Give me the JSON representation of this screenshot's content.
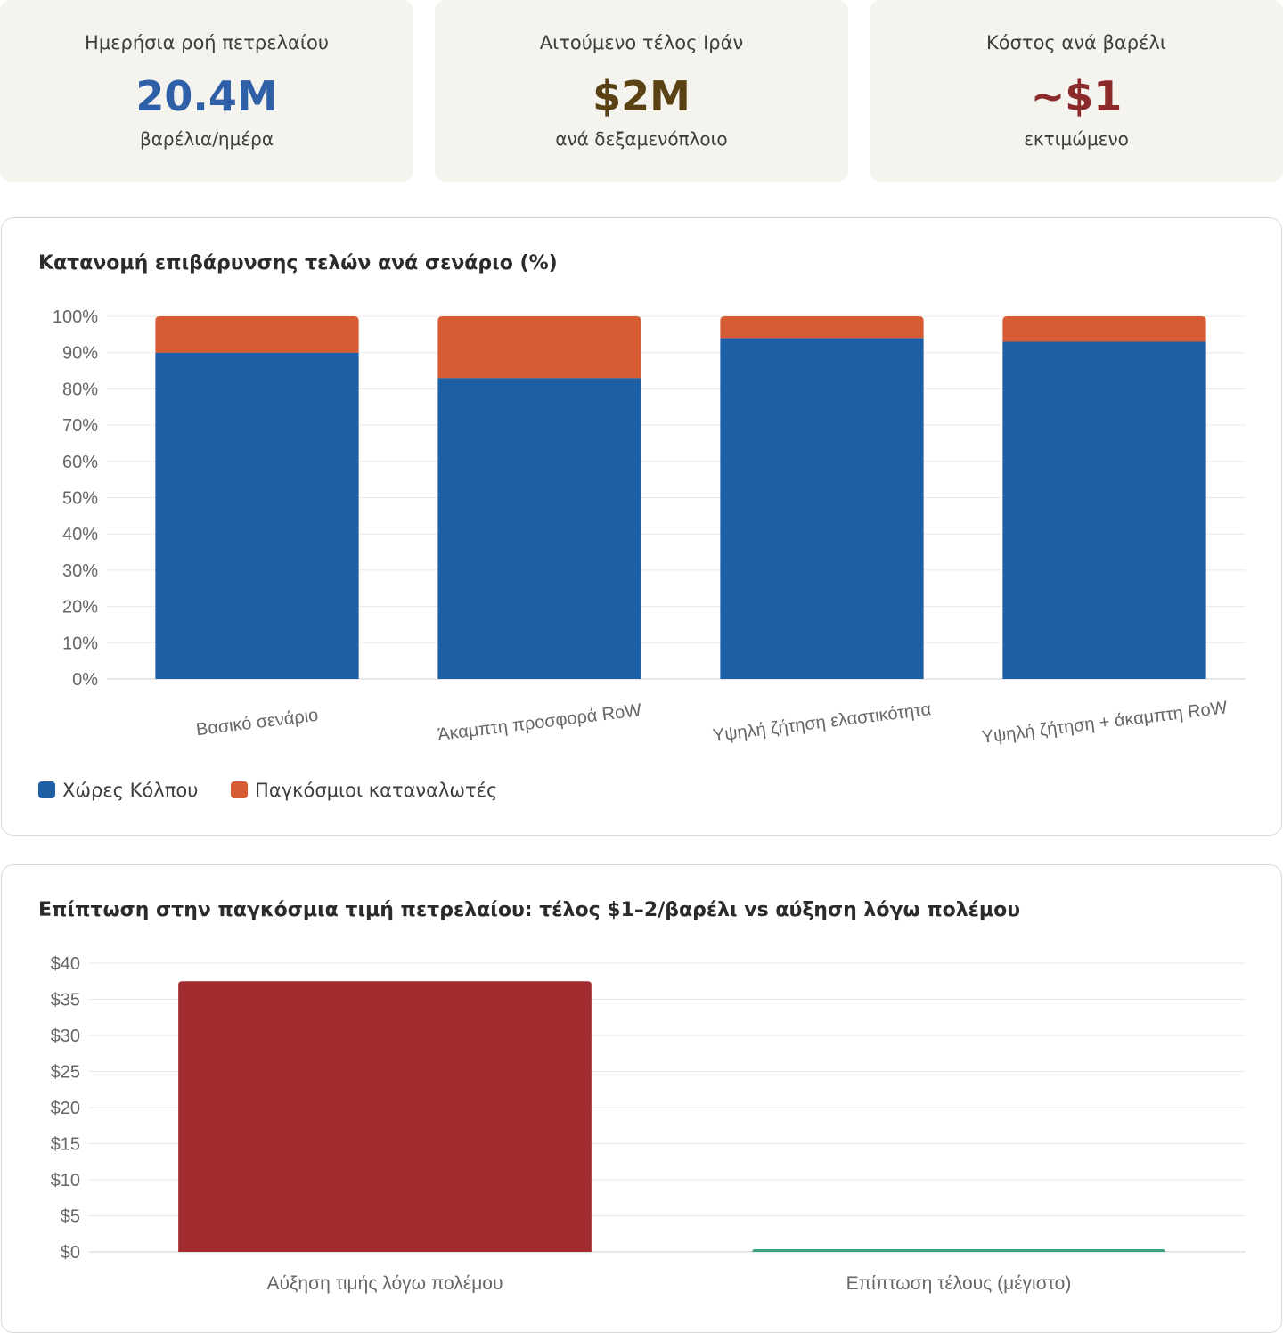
{
  "kpis": [
    {
      "label": "Ημερήσια ροή πετρελαίου",
      "value": "20.4M",
      "sub": "βαρέλια/ημέρα",
      "color": "#2f5fa6"
    },
    {
      "label": "Αιτούμενο τέλος Ιράν",
      "value": "$2M",
      "sub": "ανά δεξαμενόπλοιο",
      "color": "#5a4215"
    },
    {
      "label": "Κόστος ανά βαρέλι",
      "value": "~$1",
      "sub": "εκτιμώμενο",
      "color": "#8b2a2a"
    }
  ],
  "chart_data": [
    {
      "type": "bar",
      "stacked": true,
      "title": "Κατανομή επιβάρυνσης τελών ανά σενάριο (%)",
      "categories": [
        "Βασικό σενάριο",
        "Άκαμπτη προσφορά RoW",
        "Υψηλή ζήτηση ελαστικότητα",
        "Υψηλή ζήτηση + άκαμπτη RoW"
      ],
      "series": [
        {
          "name": "Χώρες Κόλπου",
          "values": [
            90,
            83,
            94,
            93
          ],
          "color": "#1c5fa5"
        },
        {
          "name": "Παγκόσμιοι καταναλωτές",
          "values": [
            10,
            17,
            6,
            7
          ],
          "color": "#d65b33"
        }
      ],
      "ylim": [
        0,
        100
      ],
      "yticks": [
        "0%",
        "10%",
        "20%",
        "30%",
        "40%",
        "50%",
        "60%",
        "70%",
        "80%",
        "90%",
        "100%"
      ],
      "legend_position": "bottom-left",
      "grid": true
    },
    {
      "type": "bar",
      "title": "Επίπτωση στην παγκόσμια τιμή πετρελαίου: τέλος $1–2/βαρέλι vs αύξηση λόγω πολέμου",
      "categories": [
        "Αύξηση τιμής λόγω πολέμου",
        "Επίπτωση τέλους (μέγιστο)"
      ],
      "values": [
        37.5,
        0.2
      ],
      "colors": [
        "#a22b2f",
        "#3aa37a"
      ],
      "ylim": [
        0,
        40
      ],
      "yticks": [
        "$0",
        "$5",
        "$10",
        "$15",
        "$20",
        "$25",
        "$30",
        "$35",
        "$40"
      ],
      "grid": true
    }
  ]
}
